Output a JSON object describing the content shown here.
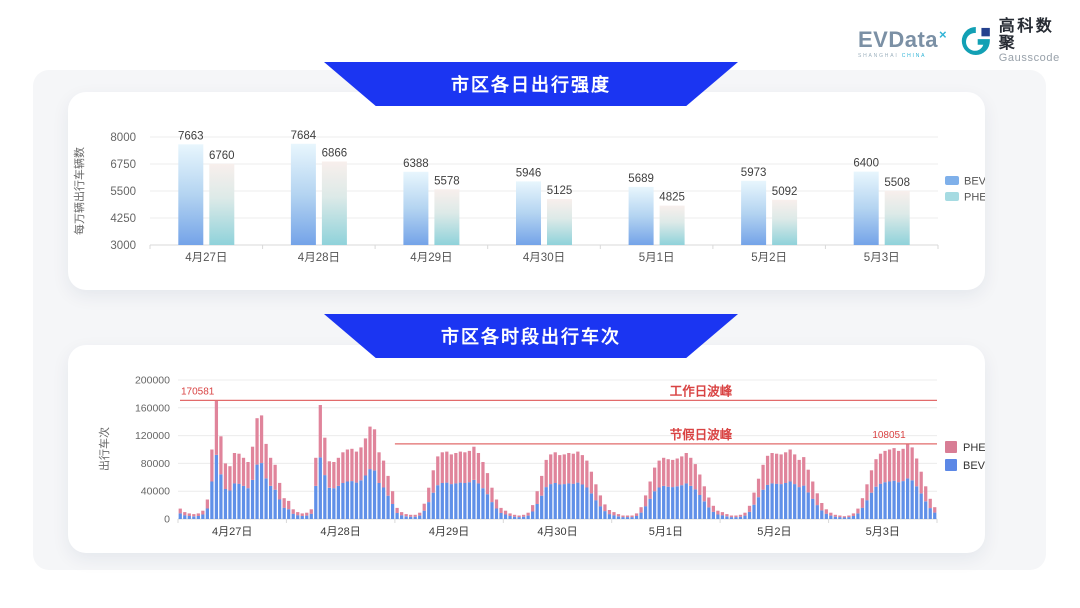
{
  "header": {
    "evdata": {
      "name": "EVData",
      "sup": "×",
      "subtitle_left": "SHANGHAI",
      "subtitle_right": "CHINA"
    },
    "gausscode": {
      "name_cn": "高科数聚",
      "name_en": "Gausscode"
    }
  },
  "colors": {
    "banner_blue": "#1b35f2",
    "bev_grad_top": "#e8f6fd",
    "bev_grad_mid": "#b4d4f1",
    "bev_grad_bottom": "#74a3e8",
    "phev_grad_top": "#f8efec",
    "phev_grad_mid": "#ddeae8",
    "phev_grad_bottom": "#8fd2da",
    "bev_legend": "#7fb0ea",
    "phev_legend": "#a6dbe2",
    "bev_solid": "#6090e8",
    "phev_solid": "#e0849b",
    "bev_solid_legend": "#5c88e6",
    "phev_solid_legend": "#d87d95",
    "annotation_line": "#e26b6b",
    "annotation_text": "#d94343",
    "grid": "#ececec",
    "axis": "#d9d9d9",
    "tick_text": "#666666",
    "label_text": "#3f3f3f",
    "gauss_teal": "#12a0b4",
    "gauss_navy": "#24418e"
  },
  "chart_data": [
    {
      "type": "bar",
      "title": "市区各日出行强度",
      "ylabel": "每万辆出行车辆数",
      "xlabel": "",
      "ylim": [
        3000,
        8000
      ],
      "yticks": [
        3000,
        4250,
        5500,
        6750,
        8000
      ],
      "grid": true,
      "legend_position": "right",
      "legend": [
        "BEV",
        "PHEV"
      ],
      "categories": [
        "4月27日",
        "4月28日",
        "4月29日",
        "4月30日",
        "5月1日",
        "5月2日",
        "5月3日"
      ],
      "series": [
        {
          "name": "BEV",
          "values": [
            7663,
            7684,
            6388,
            5946,
            5689,
            5973,
            6400
          ]
        },
        {
          "name": "PHEV",
          "values": [
            6760,
            6866,
            5578,
            5125,
            4825,
            5092,
            5508
          ]
        }
      ]
    },
    {
      "type": "stacked-bar",
      "title": "市区各时段出行车次",
      "ylabel": "出行车次",
      "xlabel": "",
      "ylim": [
        0,
        200000
      ],
      "yticks": [
        0,
        40000,
        80000,
        120000,
        160000,
        200000
      ],
      "grid": true,
      "legend_position": "right",
      "legend": [
        "PHEV",
        "BEV"
      ],
      "categories": [
        "4月27日",
        "4月28日",
        "4月29日",
        "4月30日",
        "5月1日",
        "5月2日",
        "5月3日"
      ],
      "hours_per_day": 24,
      "bev_share_of_total": 0.54,
      "hourly_totals_by_day": [
        [
          15000,
          10000,
          8000,
          7000,
          8000,
          12000,
          28000,
          100000,
          170581,
          119000,
          80000,
          76000,
          95000,
          94000,
          88000,
          82000,
          104000,
          145000,
          149000,
          108000,
          88000,
          78000,
          52000,
          30000
        ],
        [
          26000,
          14000,
          10000,
          8000,
          9000,
          14000,
          88000,
          164000,
          117000,
          83000,
          82000,
          88000,
          96000,
          100000,
          101000,
          97000,
          103000,
          116000,
          133000,
          129000,
          96000,
          84000,
          62000,
          40000
        ],
        [
          16000,
          10000,
          7000,
          6000,
          6000,
          9000,
          22000,
          45000,
          70000,
          90000,
          96000,
          97000,
          93000,
          95000,
          97000,
          96000,
          98000,
          104000,
          95000,
          82000,
          66000,
          45000,
          28000,
          16000
        ],
        [
          12000,
          8000,
          6000,
          5000,
          6000,
          9000,
          20000,
          40000,
          62000,
          85000,
          93000,
          96000,
          92000,
          93000,
          95000,
          94000,
          97000,
          92000,
          84000,
          68000,
          50000,
          34000,
          21000,
          13000
        ],
        [
          10000,
          7000,
          5000,
          5000,
          5000,
          8000,
          17000,
          34000,
          54000,
          74000,
          84000,
          88000,
          86000,
          85000,
          87000,
          90000,
          95000,
          88000,
          79000,
          64000,
          47000,
          31000,
          19000,
          12000
        ],
        [
          10000,
          7000,
          5000,
          5000,
          6000,
          9000,
          19000,
          38000,
          58000,
          78000,
          91000,
          95000,
          94000,
          93000,
          96000,
          100000,
          93000,
          85000,
          89000,
          71000,
          54000,
          37000,
          23000,
          14000
        ],
        [
          9000,
          6000,
          5000,
          4000,
          5000,
          8000,
          15000,
          30000,
          50000,
          70000,
          86000,
          94000,
          98000,
          100000,
          102000,
          98000,
          101000,
          108051,
          103000,
          87000,
          68000,
          47000,
          29000,
          17000
        ]
      ],
      "annotations": [
        {
          "label": "工作日波峰",
          "value": 170581,
          "value_label": "170581",
          "start_day": 0
        },
        {
          "label": "节假日波峰",
          "value": 108051,
          "value_label": "108051",
          "start_day": 2
        }
      ]
    }
  ]
}
